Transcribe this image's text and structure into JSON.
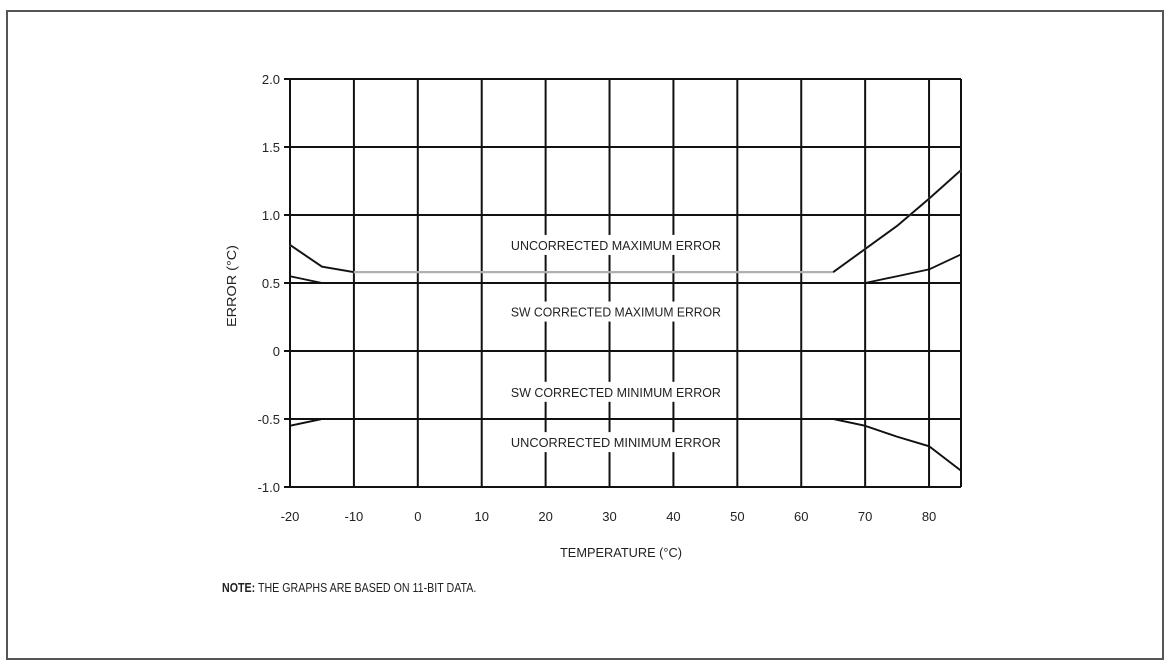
{
  "chart_data": {
    "type": "line",
    "xlabel": "TEMPERATURE (°C)",
    "ylabel": "ERROR (°C)",
    "xlim": [
      -20,
      85
    ],
    "ylim": [
      -1.0,
      2.0
    ],
    "x_ticks": [
      -20,
      -10,
      0,
      10,
      20,
      30,
      40,
      50,
      60,
      70,
      80
    ],
    "x_tick_labels": [
      "-20",
      "-10",
      "0",
      "10",
      "20",
      "30",
      "40",
      "50",
      "60",
      "70",
      "80"
    ],
    "y_ticks": [
      -1.0,
      -0.5,
      0,
      0.5,
      1.0,
      1.5,
      2.0
    ],
    "y_tick_labels": [
      "-1.0",
      "-0.5",
      "0",
      "0.5",
      "1.0",
      "1.5",
      "2.0"
    ],
    "grid": true,
    "series": [
      {
        "name": "UNCORRECTED MAXIMUM ERROR",
        "x": [
          -20,
          -15,
          -10,
          0,
          10,
          20,
          30,
          40,
          50,
          60,
          65,
          70,
          75,
          80,
          85
        ],
        "y": [
          0.78,
          0.62,
          0.58,
          0.58,
          0.58,
          0.58,
          0.58,
          0.58,
          0.58,
          0.58,
          0.58,
          0.75,
          0.92,
          1.12,
          1.33
        ]
      },
      {
        "name": "SW CORRECTED MAXIMUM ERROR",
        "x": [
          -20,
          -15,
          -10,
          0,
          10,
          20,
          30,
          40,
          50,
          60,
          65,
          70,
          75,
          80,
          85
        ],
        "y": [
          0.55,
          0.5,
          0.5,
          0.5,
          0.5,
          0.5,
          0.5,
          0.5,
          0.5,
          0.5,
          0.5,
          0.5,
          0.55,
          0.6,
          0.71
        ]
      },
      {
        "name": "SW CORRECTED MINIMUM ERROR",
        "x": [
          -20,
          -15,
          -10,
          0,
          10,
          20,
          30,
          40,
          50,
          60,
          65,
          70,
          75,
          80,
          85
        ],
        "y": [
          -0.55,
          -0.5,
          -0.5,
          -0.5,
          -0.5,
          -0.5,
          -0.5,
          -0.5,
          -0.5,
          -0.5,
          -0.5,
          -0.55,
          -0.63,
          -0.7,
          -0.88
        ]
      },
      {
        "name": "UNCORRECTED MINIMUM ERROR",
        "x": [
          -20,
          -15,
          -10,
          0,
          10,
          20,
          30,
          40,
          50,
          60,
          65,
          70,
          75,
          80,
          85
        ],
        "y": [
          -0.55,
          -0.5,
          -0.5,
          -0.5,
          -0.5,
          -0.5,
          -0.5,
          -0.5,
          -0.5,
          -0.5,
          -0.5,
          -0.55,
          -0.63,
          -0.7,
          -0.88
        ]
      }
    ],
    "annotations": [
      {
        "text": "UNCORRECTED MAXIMUM ERROR",
        "x": 31,
        "y": 0.78
      },
      {
        "text": "SW CORRECTED MAXIMUM ERROR",
        "x": 31,
        "y": 0.29
      },
      {
        "text": "SW CORRECTED MINIMUM ERROR",
        "x": 31,
        "y": -0.3
      },
      {
        "text": "UNCORRECTED MINIMUM ERROR",
        "x": 31,
        "y": -0.67
      }
    ]
  },
  "note": {
    "label": "NOTE:",
    "text": " THE GRAPHS ARE BASED ON 11-BIT DATA."
  },
  "colors": {
    "grid": "#111111",
    "series_max": "#b0b0b0",
    "series_other": "#111111"
  }
}
